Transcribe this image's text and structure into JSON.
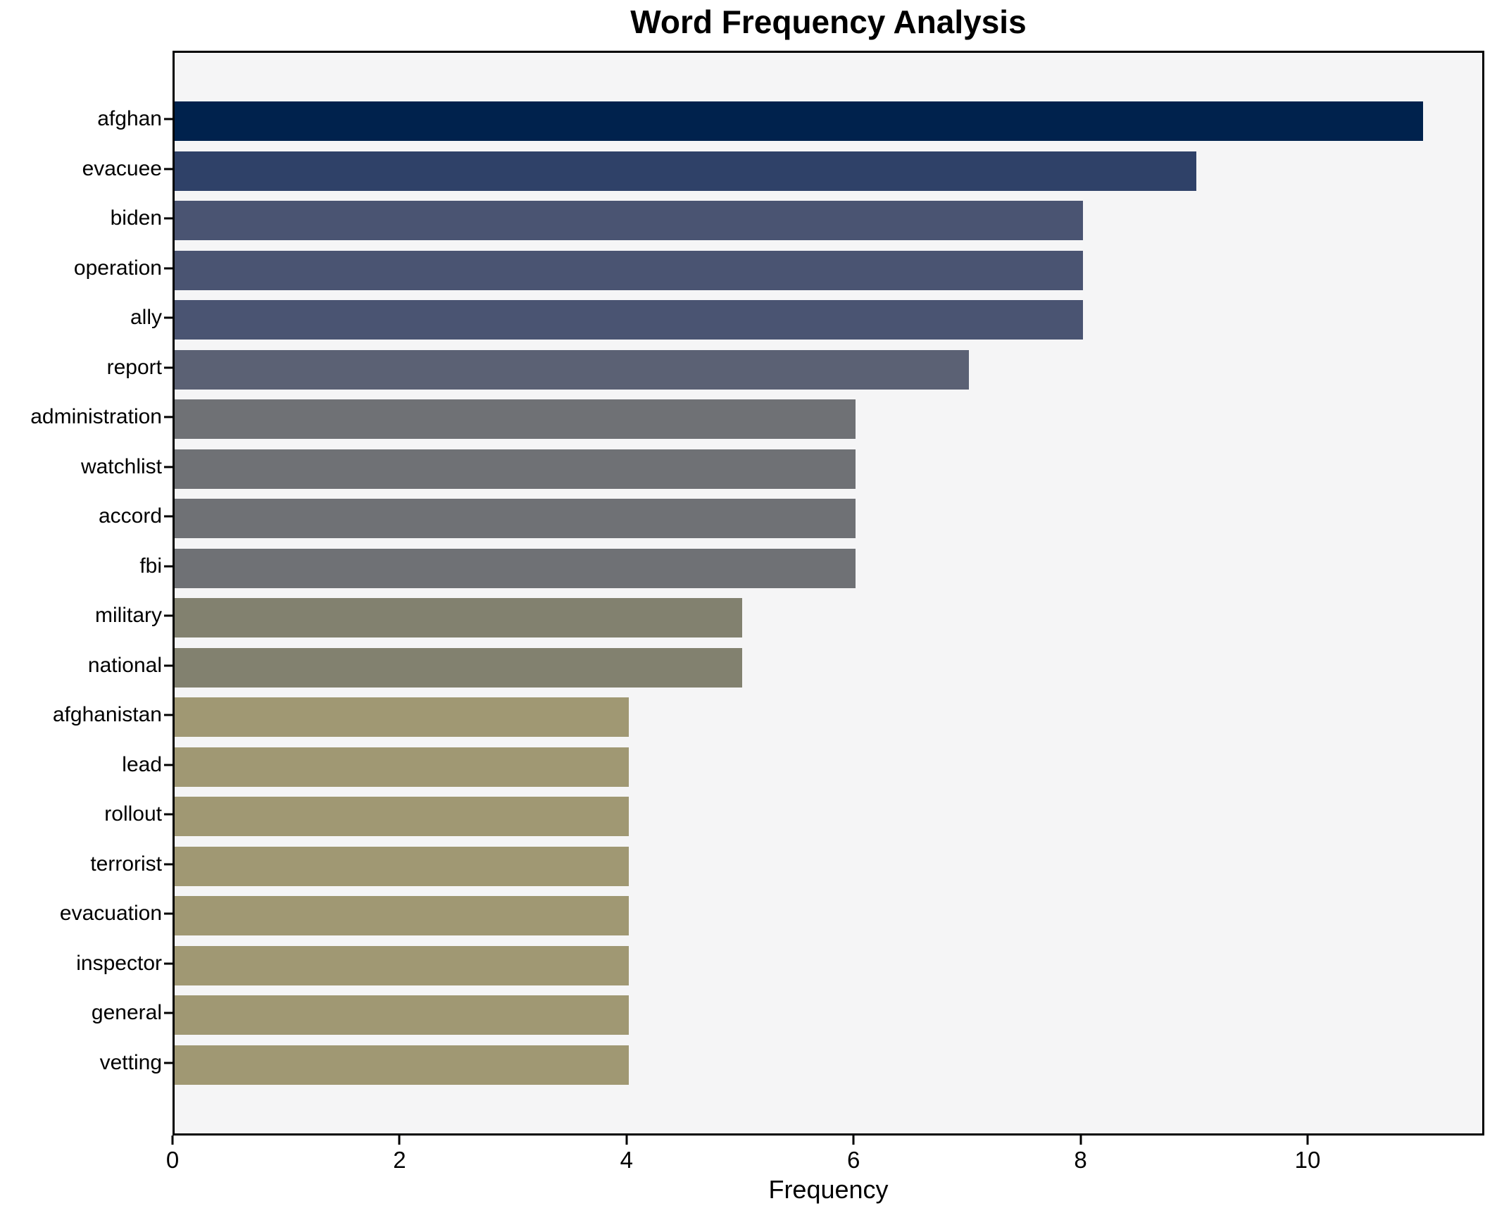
{
  "chart_data": {
    "type": "bar",
    "orientation": "horizontal",
    "title": "Word Frequency Analysis",
    "xlabel": "Frequency",
    "ylabel": "",
    "categories": [
      "afghan",
      "evacuee",
      "biden",
      "operation",
      "ally",
      "report",
      "administration",
      "watchlist",
      "accord",
      "fbi",
      "military",
      "national",
      "afghanistan",
      "lead",
      "rollout",
      "terrorist",
      "evacuation",
      "inspector",
      "general",
      "vetting"
    ],
    "values": [
      11,
      9,
      8,
      8,
      8,
      7,
      6,
      6,
      6,
      6,
      5,
      5,
      4,
      4,
      4,
      4,
      4,
      4,
      4,
      4
    ],
    "bar_colors": [
      "#00224d",
      "#2f4168",
      "#4a5472",
      "#4a5472",
      "#4a5472",
      "#5b6174",
      "#6f7175",
      "#6f7175",
      "#6f7175",
      "#6f7175",
      "#82816f",
      "#82816f",
      "#a09873",
      "#a09873",
      "#a09873",
      "#a09873",
      "#a09873",
      "#a09873",
      "#a09873",
      "#a09873"
    ],
    "xticks": [
      0,
      2,
      4,
      6,
      8,
      10
    ],
    "xlim": [
      0,
      11.56
    ],
    "grid": false,
    "legend_position": "none",
    "plot_background": "#f5f5f6",
    "figure_background": "#ffffff",
    "spine_color": "#000000"
  }
}
